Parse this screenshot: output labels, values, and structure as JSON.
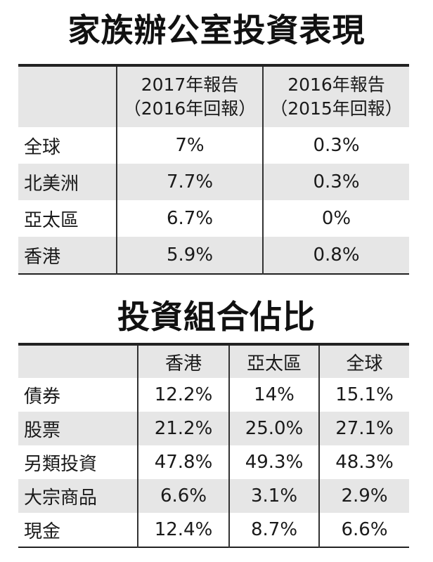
{
  "table1": {
    "title": "家族辦公室投資表現",
    "columns": [
      {
        "line1": "2017年報告",
        "line2": "（2016年回報）"
      },
      {
        "line1": "2016年報告",
        "line2": "（2015年回報）"
      }
    ],
    "rows": [
      {
        "label": "全球",
        "values": [
          "7%",
          "0.3%"
        ]
      },
      {
        "label": "北美洲",
        "values": [
          "7.7%",
          "0.3%"
        ]
      },
      {
        "label": "亞太區",
        "values": [
          "6.7%",
          "0%"
        ]
      },
      {
        "label": "香港",
        "values": [
          "5.9%",
          "0.8%"
        ]
      }
    ]
  },
  "table2": {
    "title": "投資組合佔比",
    "columns": [
      "香港",
      "亞太區",
      "全球"
    ],
    "rows": [
      {
        "label": "債券",
        "values": [
          "12.2%",
          "14%",
          "15.1%"
        ]
      },
      {
        "label": "股票",
        "values": [
          "21.2%",
          "25.0%",
          "27.1%"
        ]
      },
      {
        "label": "另類投資",
        "values": [
          "47.8%",
          "49.3%",
          "48.3%"
        ]
      },
      {
        "label": "大宗商品",
        "values": [
          "6.6%",
          "3.1%",
          "2.9%"
        ]
      },
      {
        "label": "現金",
        "values": [
          "12.4%",
          "8.7%",
          "6.6%"
        ]
      }
    ]
  },
  "colors": {
    "header_shade": "#e6e6e6",
    "rule": "#222222",
    "text": "#1a1a1a"
  }
}
